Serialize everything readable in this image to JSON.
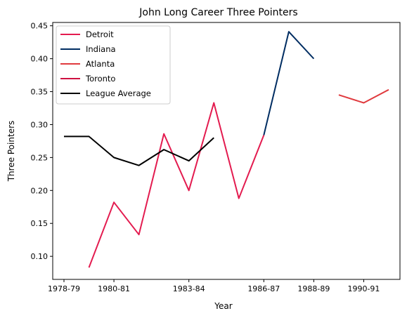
{
  "chart_data": {
    "type": "line",
    "title": "John Long  Career Three Pointers",
    "xlabel": "Year",
    "ylabel": "Three Pointers",
    "xlim": [
      -0.45,
      13.45
    ],
    "ylim": [
      0.065,
      0.455
    ],
    "x_ticks": [
      {
        "index": 0,
        "label": "1978-79"
      },
      {
        "index": 2,
        "label": "1980-81"
      },
      {
        "index": 5,
        "label": "1983-84"
      },
      {
        "index": 8,
        "label": "1986-87"
      },
      {
        "index": 10,
        "label": "1988-89"
      },
      {
        "index": 12,
        "label": "1990-91"
      }
    ],
    "y_ticks": [
      0.1,
      0.15,
      0.2,
      0.25,
      0.3,
      0.35,
      0.4,
      0.45
    ],
    "legend_position": "top-left",
    "series": [
      {
        "name": "Detroit",
        "color": "#e31b4f",
        "points": [
          [
            1,
            0.083
          ],
          [
            2,
            0.182
          ],
          [
            3,
            0.133
          ],
          [
            4,
            0.286
          ],
          [
            5,
            0.2
          ],
          [
            6,
            0.333
          ],
          [
            7,
            0.188
          ],
          [
            8,
            0.284
          ]
        ]
      },
      {
        "name": "Indiana",
        "color": "#002d62",
        "points": [
          [
            8,
            0.284
          ],
          [
            9,
            0.441
          ],
          [
            10,
            0.4
          ]
        ]
      },
      {
        "name": "Atlanta",
        "color": "#e03a3e",
        "points": [
          [
            11,
            0.345
          ],
          [
            12,
            0.333
          ],
          [
            13,
            0.353
          ]
        ]
      },
      {
        "name": "Toronto",
        "color": "#ce1141",
        "points": []
      },
      {
        "name": "League Average",
        "color": "#000000",
        "points": [
          [
            0,
            0.282
          ],
          [
            1,
            0.282
          ],
          [
            2,
            0.25
          ],
          [
            3,
            0.238
          ],
          [
            4,
            0.262
          ],
          [
            5,
            0.245
          ],
          [
            6,
            0.28
          ]
        ]
      }
    ]
  }
}
